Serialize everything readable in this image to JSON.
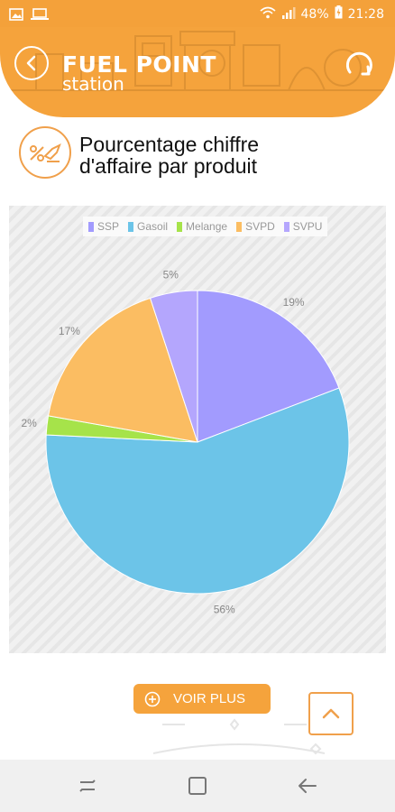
{
  "status_bar": {
    "battery": "48%",
    "time": "21:28"
  },
  "header": {
    "title": "FUEL POINT",
    "subtitle": "station"
  },
  "section": {
    "title_line1": "Pourcentage chiffre",
    "title_line2": "d'affaire par produit"
  },
  "chart_data": {
    "type": "pie",
    "categories": [
      "SSP",
      "Gasoil",
      "Melange",
      "SVPD",
      "SVPU"
    ],
    "values": [
      19,
      56,
      2,
      17,
      5
    ],
    "labels": [
      "19%",
      "56%",
      "2%",
      "17%",
      "5%"
    ],
    "colors": [
      "#a29bfe",
      "#6cc4e8",
      "#a6e34a",
      "#fbbd62",
      "#b4a6fd"
    ],
    "legend_position": "top"
  },
  "actions": {
    "voir_plus": "VOIR PLUS"
  }
}
